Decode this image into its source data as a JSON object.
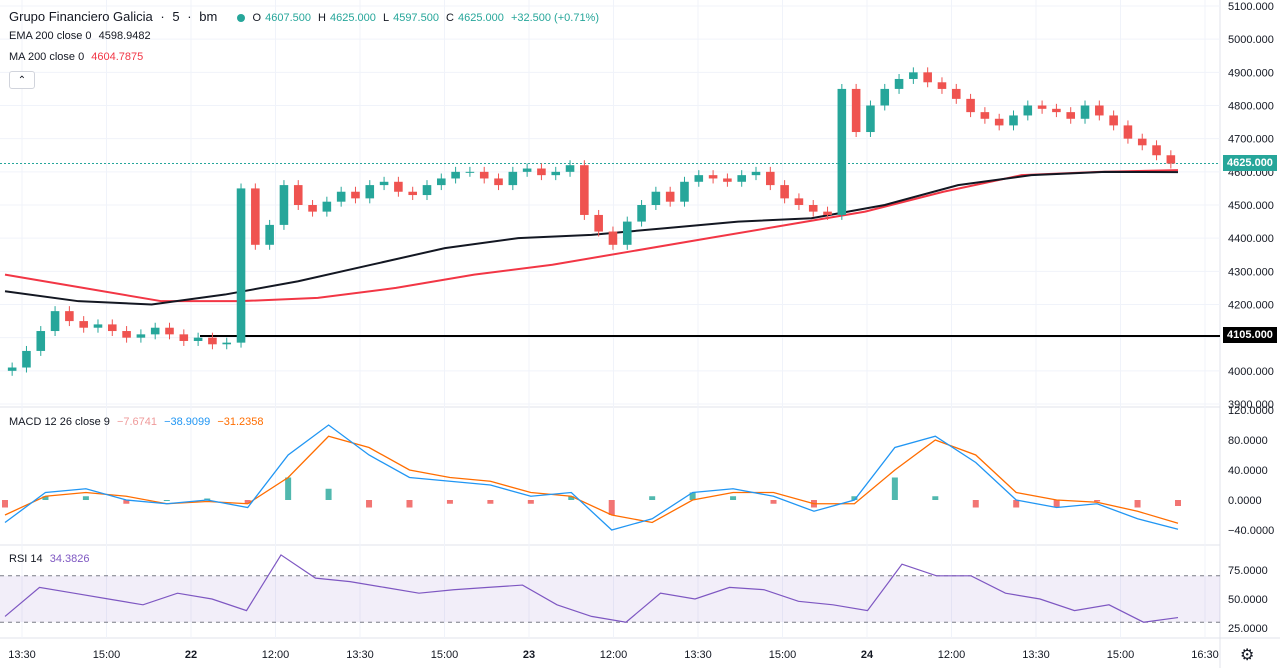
{
  "header": {
    "symbol": "Grupo Financiero Galicia",
    "sep": "·",
    "interval": "5",
    "exchange": "bm",
    "ohlc": {
      "o_key": "O",
      "o": "4607.500",
      "h_key": "H",
      "h": "4625.000",
      "l_key": "L",
      "l": "4597.500",
      "c_key": "C",
      "c": "4625.000",
      "change": "+32.500 (+0.71%)"
    }
  },
  "indicators": {
    "ema": {
      "label": "EMA 200 close 0",
      "value": "4598.9482"
    },
    "ma": {
      "label": "MA 200 close 0",
      "value": "4604.7875"
    },
    "macd": {
      "label": "MACD 12 26 close 9",
      "hist": "−7.6741",
      "macd": "−38.9099",
      "signal": "−31.2358"
    },
    "rsi": {
      "label": "RSI 14",
      "value": "34.3826"
    }
  },
  "price_tags": {
    "current": "4625.000",
    "level": "4105.000"
  },
  "colors": {
    "up": "#26a69a",
    "down": "#ef5350",
    "ema": "#131722",
    "ma": "#f23645",
    "macd_line": "#2196f3",
    "signal_line": "#ff6d00",
    "rsi_line": "#7e57c2",
    "level": "#000000"
  },
  "icons": {
    "status": "green-dot-icon",
    "collapse": "chevron-up-icon",
    "settings": "gear-icon"
  },
  "chart_data": {
    "type": "candlestick",
    "price_axis": {
      "ticks": [
        3900,
        4000,
        4100,
        4200,
        4300,
        4400,
        4500,
        4600,
        4700,
        4800,
        4900,
        5000,
        5100
      ],
      "labels": [
        "3900.000",
        "4000.000",
        "4100.000",
        "4200.000",
        "4300.000",
        "4400.000",
        "4500.000",
        "4600.000",
        "4700.000",
        "4800.000",
        "4900.000",
        "5000.000",
        "5100.000"
      ]
    },
    "time_axis": [
      "13:30",
      "15:00",
      "22",
      "12:00",
      "13:30",
      "15:00",
      "23",
      "12:00",
      "13:30",
      "15:00",
      "24",
      "12:00",
      "13:30",
      "15:00",
      "16:30"
    ],
    "horizontal_level": 4105,
    "current_price": 4625,
    "price_series": [
      4010,
      4060,
      4120,
      4180,
      4150,
      4130,
      4140,
      4120,
      4100,
      4110,
      4130,
      4110,
      4090,
      4100,
      4080,
      4085,
      4550,
      4380,
      4440,
      4560,
      4500,
      4480,
      4510,
      4540,
      4520,
      4560,
      4570,
      4540,
      4530,
      4560,
      4580,
      4600,
      4600,
      4580,
      4560,
      4600,
      4610,
      4590,
      4600,
      4620,
      4470,
      4420,
      4380,
      4450,
      4500,
      4540,
      4510,
      4570,
      4590,
      4580,
      4570,
      4590,
      4600,
      4560,
      4520,
      4500,
      4480,
      4470,
      4850,
      4720,
      4800,
      4850,
      4880,
      4900,
      4870,
      4850,
      4820,
      4780,
      4760,
      4740,
      4770,
      4800,
      4790,
      4780,
      4760,
      4800,
      4770,
      4740,
      4700,
      4680,
      4650,
      4625
    ],
    "ema200": [
      4240,
      4210,
      4200,
      4230,
      4270,
      4320,
      4370,
      4400,
      4410,
      4430,
      4450,
      4460,
      4500,
      4560,
      4590,
      4600,
      4599
    ],
    "ma200": [
      4290,
      4250,
      4210,
      4210,
      4220,
      4250,
      4290,
      4320,
      4360,
      4400,
      4440,
      4480,
      4540,
      4590,
      4600,
      4605
    ],
    "macd": {
      "ticks": [
        -40,
        0,
        40,
        80,
        120
      ],
      "labels": [
        "−40.0000",
        "0.0000",
        "40.0000",
        "80.0000",
        "120.0000"
      ],
      "macd_line": [
        -30,
        10,
        15,
        0,
        -5,
        0,
        -10,
        60,
        100,
        60,
        30,
        25,
        20,
        5,
        10,
        -40,
        -25,
        10,
        15,
        5,
        -15,
        0,
        70,
        85,
        50,
        0,
        -10,
        -5,
        -25,
        -39
      ],
      "signal_line": [
        -20,
        5,
        10,
        5,
        -5,
        -2,
        -5,
        30,
        85,
        70,
        40,
        30,
        25,
        10,
        5,
        -20,
        -30,
        0,
        10,
        10,
        -5,
        -5,
        40,
        80,
        60,
        10,
        0,
        -3,
        -15,
        -31
      ]
    },
    "rsi": {
      "ticks": [
        25,
        50,
        75
      ],
      "labels": [
        "25.0000",
        "50.0000",
        "75.0000"
      ],
      "upper": 70,
      "lower": 30,
      "values": [
        35,
        60,
        55,
        50,
        45,
        55,
        50,
        40,
        88,
        68,
        65,
        60,
        55,
        58,
        60,
        62,
        45,
        35,
        30,
        55,
        50,
        60,
        58,
        48,
        45,
        40,
        80,
        70,
        70,
        55,
        50,
        40,
        45,
        30,
        34
      ]
    }
  }
}
